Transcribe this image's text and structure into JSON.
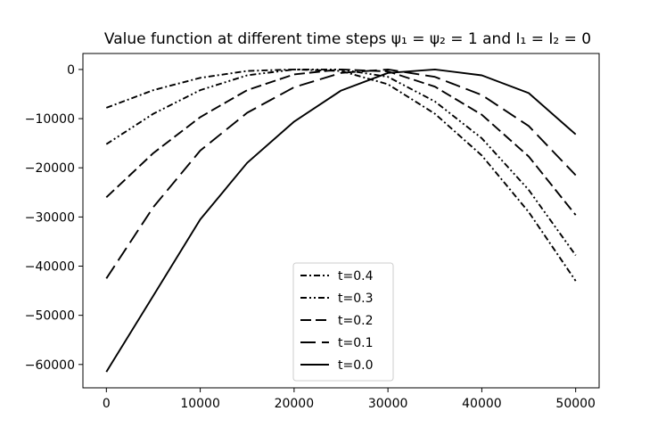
{
  "chart_data": {
    "type": "line",
    "title": "Value function at different time steps ψ₁ = ψ₂ = 1 and I₁ = I₂ = 0",
    "xlabel": "",
    "ylabel": "",
    "xlim": [
      -2500,
      52500
    ],
    "ylim": [
      -64750,
      3250
    ],
    "xticks": [
      0,
      10000,
      20000,
      30000,
      40000,
      50000
    ],
    "xtick_labels": [
      "0",
      "10000",
      "20000",
      "30000",
      "40000",
      "50000"
    ],
    "yticks": [
      0,
      -10000,
      -20000,
      -30000,
      -40000,
      -50000,
      -60000
    ],
    "ytick_labels": [
      "0",
      "−10000",
      "−20000",
      "−30000",
      "−40000",
      "−50000",
      "−60000"
    ],
    "grid": false,
    "legend_position": "lower center",
    "series": [
      {
        "name": "t=0.4",
        "dash": "dashdot",
        "x": [
          0,
          5000,
          10000,
          15000,
          20000,
          25000,
          30000,
          35000,
          40000,
          45000,
          50000
        ],
        "y": [
          -7800,
          -4200,
          -1700,
          -300,
          0,
          -300,
          -3000,
          -9000,
          -17500,
          -29000,
          -43000
        ]
      },
      {
        "name": "t=0.3",
        "dash": "dashdotdot",
        "x": [
          0,
          5000,
          10000,
          15000,
          20000,
          25000,
          30000,
          35000,
          40000,
          45000,
          50000
        ],
        "y": [
          -15200,
          -9000,
          -4200,
          -1200,
          0,
          0,
          -1500,
          -6500,
          -14000,
          -24500,
          -37800
        ]
      },
      {
        "name": "t=0.2",
        "dash": "dashed",
        "x": [
          0,
          5000,
          10000,
          15000,
          20000,
          25000,
          30000,
          35000,
          40000,
          45000,
          50000
        ],
        "y": [
          -26000,
          -17000,
          -9700,
          -4200,
          -1000,
          0,
          -400,
          -3500,
          -9200,
          -17700,
          -29600
        ]
      },
      {
        "name": "t=0.1",
        "dash": "longdash",
        "x": [
          0,
          5000,
          10000,
          15000,
          20000,
          25000,
          30000,
          35000,
          40000,
          45000,
          50000
        ],
        "y": [
          -42500,
          -28000,
          -16500,
          -8800,
          -3600,
          -700,
          0,
          -1500,
          -5200,
          -11500,
          -21500
        ]
      },
      {
        "name": "t=0.0",
        "dash": "solid",
        "x": [
          0,
          5000,
          10000,
          15000,
          20000,
          25000,
          30000,
          35000,
          40000,
          45000,
          50000
        ],
        "y": [
          -61500,
          -46000,
          -30500,
          -19000,
          -10600,
          -4300,
          -700,
          0,
          -1200,
          -4800,
          -13200
        ]
      }
    ]
  }
}
